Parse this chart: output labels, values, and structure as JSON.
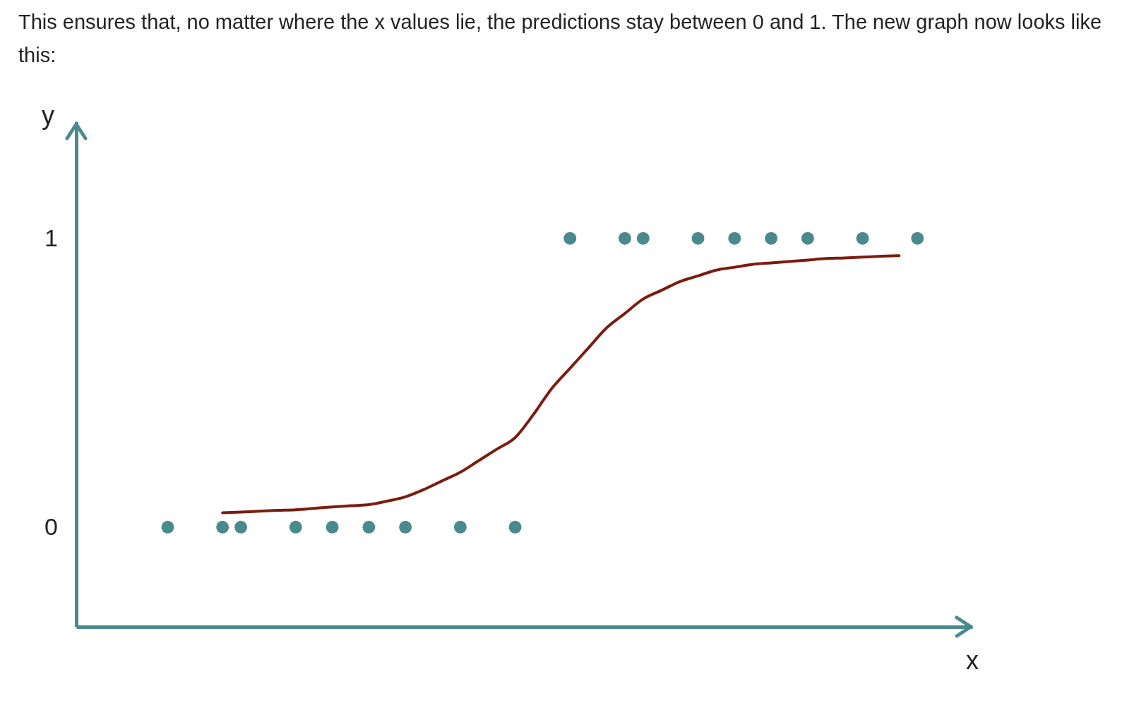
{
  "chart_data": {
    "type": "scatter",
    "annotations": [
      "This ensures that, no matter where the x values lie, the predictions stay between 0 and 1. The new graph now looks like this:"
    ],
    "xlabel": "x",
    "ylabel": "y",
    "ylim": [
      -0.345,
      1.405
    ],
    "yticks": [
      0,
      1
    ],
    "grid": false,
    "tick_labels": "y",
    "marker": "circle",
    "categories": [
      null,
      null,
      null,
      null,
      null,
      null,
      null,
      null,
      null,
      null,
      null,
      null,
      null,
      null,
      null,
      null,
      null,
      null,
      null,
      null,
      null,
      null,
      null,
      null,
      null,
      null,
      null,
      null,
      null,
      null,
      null,
      null,
      null,
      null,
      null,
      null,
      null,
      null,
      null,
      null,
      null,
      null,
      null,
      null,
      null,
      null,
      null,
      null,
      null,
      null
    ],
    "series": [
      {
        "color": "#4a8a8c",
        "values": [
          null,
          null,
          null,
          null,
          null,
          0,
          null,
          null,
          0,
          0,
          null,
          null,
          0,
          null,
          0,
          null,
          0,
          null,
          0,
          null,
          null,
          0,
          null,
          null,
          0,
          null,
          null,
          1,
          null,
          null,
          1,
          1,
          null,
          null,
          1,
          null,
          1,
          null,
          1,
          null,
          1,
          null,
          null,
          1,
          null,
          null,
          1,
          null,
          null,
          null
        ]
      },
      {
        "type": "line",
        "color": "#7b1c10",
        "line_style": "solid",
        "marker": "none",
        "values": [
          null,
          null,
          null,
          null,
          null,
          null,
          null,
          null,
          0.05,
          0.052,
          0.055,
          0.058,
          0.06,
          0.065,
          0.07,
          0.074,
          0.078,
          0.09,
          0.105,
          0.13,
          0.16,
          0.19,
          0.23,
          0.27,
          0.31,
          0.39,
          0.48,
          0.55,
          0.62,
          0.69,
          0.74,
          0.79,
          0.82,
          0.85,
          0.87,
          0.89,
          0.9,
          0.91,
          0.915,
          0.92,
          0.925,
          0.93,
          0.932,
          0.935,
          0.938,
          0.94,
          null,
          null,
          null,
          null
        ]
      }
    ]
  }
}
